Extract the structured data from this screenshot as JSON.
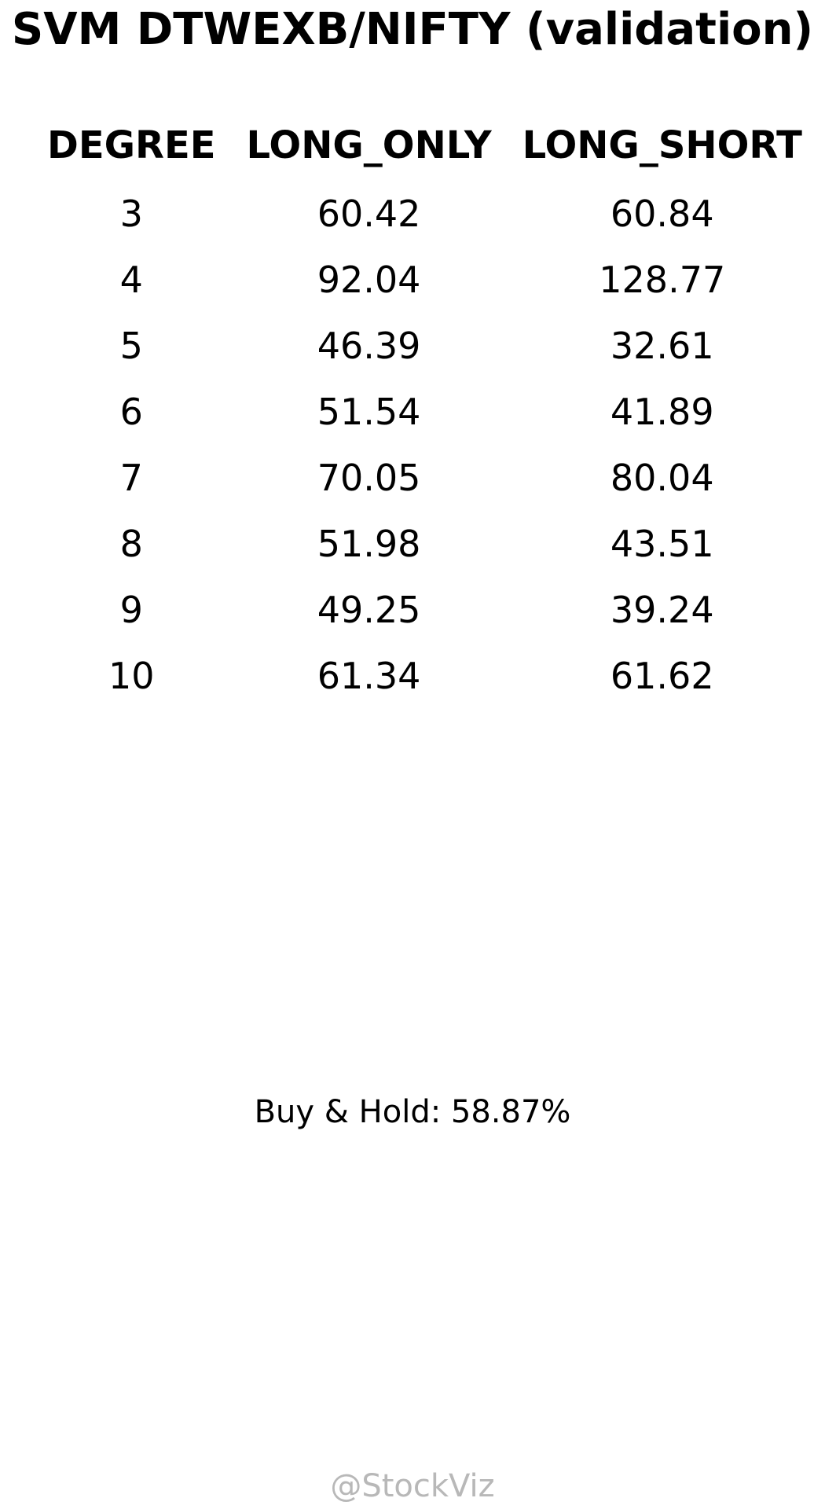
{
  "title": "SVM DTWEXB/NIFTY (validation)",
  "table": {
    "headers": [
      "DEGREE",
      "LONG_ONLY",
      "LONG_SHORT"
    ],
    "rows": [
      [
        "3",
        "60.42",
        "60.84"
      ],
      [
        "4",
        "92.04",
        "128.77"
      ],
      [
        "5",
        "46.39",
        "32.61"
      ],
      [
        "6",
        "51.54",
        "41.89"
      ],
      [
        "7",
        "70.05",
        "80.04"
      ],
      [
        "8",
        "51.98",
        "43.51"
      ],
      [
        "9",
        "49.25",
        "39.24"
      ],
      [
        "10",
        "61.34",
        "61.62"
      ]
    ]
  },
  "footnote": "Buy & Hold: 58.87%",
  "watermark": "@StockViz"
}
